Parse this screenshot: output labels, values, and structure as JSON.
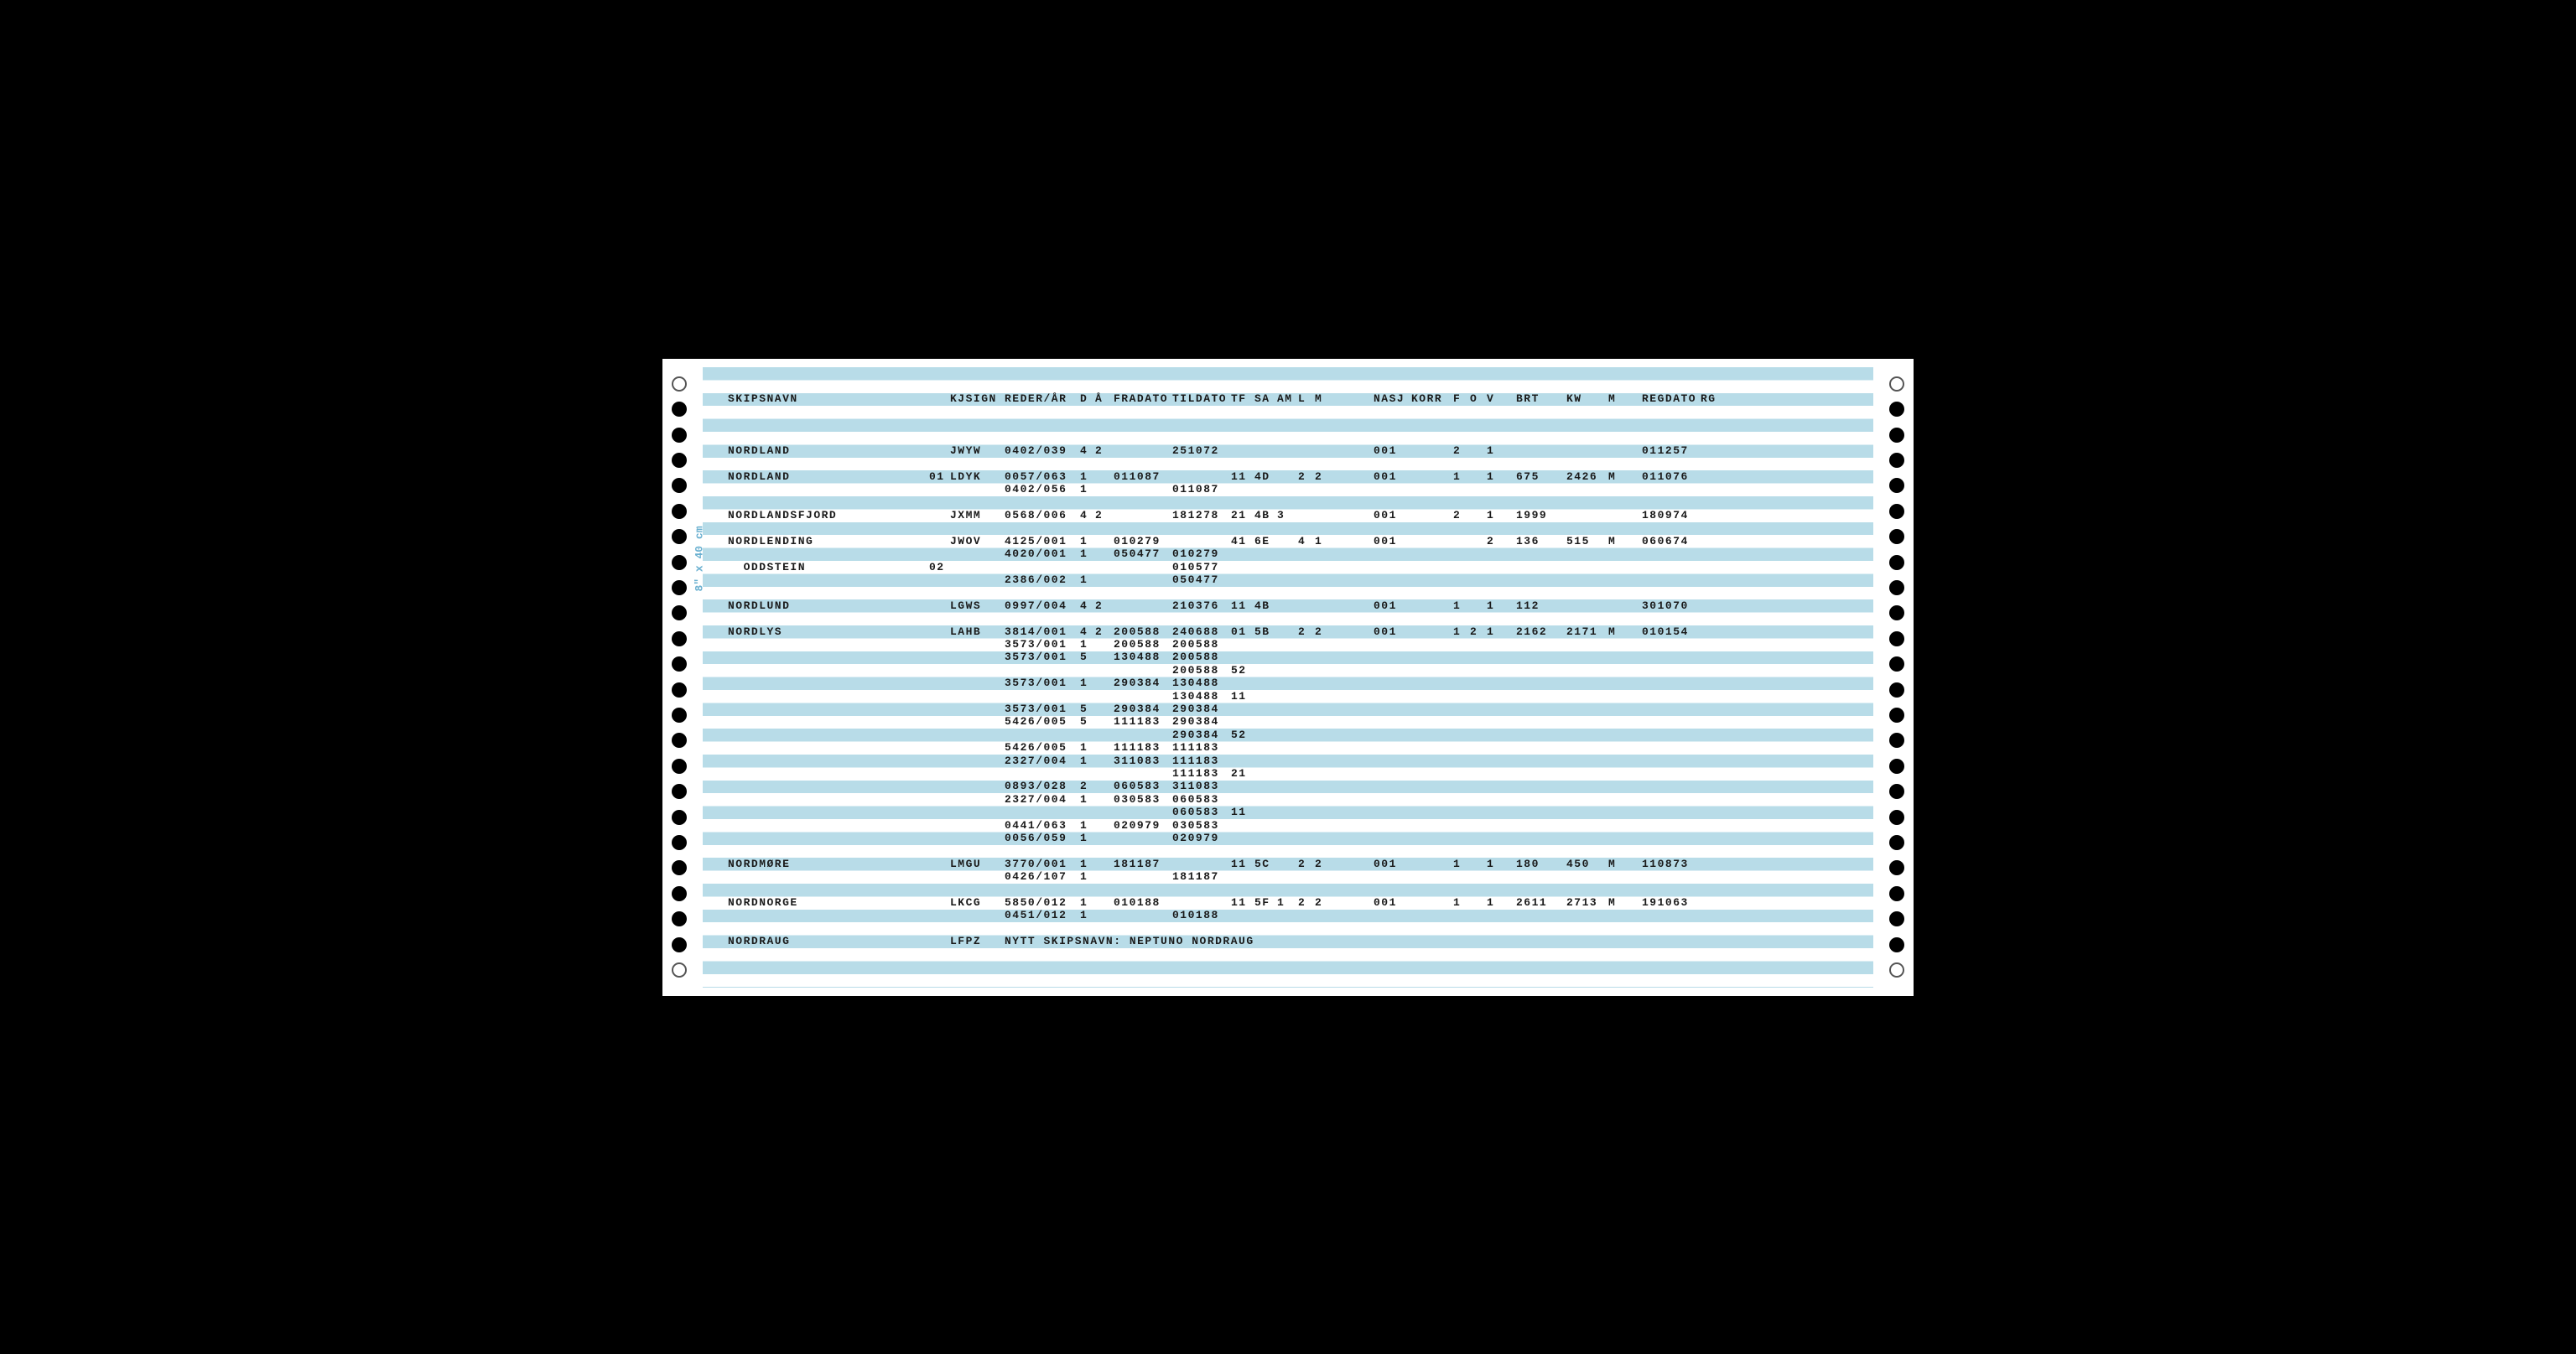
{
  "headers": {
    "skipsnavn": "SKIPSNAVN",
    "kjsign": "KJSIGN",
    "reder": "REDER/ÅR",
    "d": "D",
    "a": "Å",
    "fradato": "FRADATO",
    "tildato": "TILDATO",
    "tf": "TF",
    "sa": "SA",
    "am": "AM",
    "l": "L",
    "m": "M",
    "nasj": "NASJ",
    "korr": "KORR",
    "f": "F",
    "o": "O",
    "v": "V",
    "brt": "BRT",
    "kw": "KW",
    "m2": "M",
    "regdato": "REGDATO",
    "rg": "RG"
  },
  "side_label_large": "8\" x 40 cm",
  "rows": [
    {
      "line": 2,
      "skipsnavn": "SKIPSNAVN",
      "is_header": true
    },
    {
      "line": 6,
      "skipsnavn": "NORDLAND",
      "kjsign": "JWYW",
      "reder": "0402/039",
      "d": "4",
      "a": "2",
      "tildato": "251072",
      "nasj": "001",
      "f": "2",
      "v": "1",
      "regdato": "011257"
    },
    {
      "line": 8,
      "skipsnavn": "NORDLAND",
      "pre": "01",
      "kjsign": "LDYK",
      "reder": "0057/063",
      "d": "1",
      "fradato": "011087",
      "tf": "11",
      "sa": "4D",
      "l": "2",
      "m": "2",
      "nasj": "001",
      "f": "1",
      "v": "1",
      "brt": "675",
      "kw": "2426",
      "m2": "M",
      "regdato": "011076"
    },
    {
      "line": 9,
      "reder": "0402/056",
      "d": "1",
      "tildato": "011087"
    },
    {
      "line": 11,
      "skipsnavn": "NORDLANDSFJORD",
      "kjsign": "JXMM",
      "reder": "0568/006",
      "d": "4",
      "a": "2",
      "tildato": "181278",
      "tf": "21",
      "sa": "4B",
      "am": "3",
      "nasj": "001",
      "f": "2",
      "v": "1",
      "brt": "1999",
      "regdato": "180974"
    },
    {
      "line": 13,
      "skipsnavn": "NORDLENDING",
      "kjsign": "JWOV",
      "reder": "4125/001",
      "d": "1",
      "fradato": "010279",
      "tf": "41",
      "sa": "6E",
      "l": "4",
      "m": "1",
      "nasj": "001",
      "f": "",
      "v": "2",
      "brt": "136",
      "kw": "515",
      "m2": "M",
      "regdato": "060674"
    },
    {
      "line": 14,
      "reder": "4020/001",
      "d": "1",
      "fradato": "050477",
      "tildato": "010279"
    },
    {
      "line": 15,
      "skipsnavn": "  ODDSTEIN",
      "pre": "02",
      "tildato": "010577"
    },
    {
      "line": 16,
      "reder": "2386/002",
      "d": "1",
      "tildato": "050477"
    },
    {
      "line": 18,
      "skipsnavn": "NORDLUND",
      "kjsign": "LGWS",
      "reder": "0997/004",
      "d": "4",
      "a": "2",
      "tildato": "210376",
      "tf": "11",
      "sa": "4B",
      "nasj": "001",
      "f": "1",
      "v": "1",
      "brt": "112",
      "regdato": "301070"
    },
    {
      "line": 20,
      "skipsnavn": "NORDLYS",
      "kjsign": "LAHB",
      "reder": "3814/001",
      "d": "4",
      "a": "2",
      "fradato": "200588",
      "tildato": "240688",
      "tf": "01",
      "sa": "5B",
      "l": "2",
      "m": "2",
      "nasj": "001",
      "f": "1",
      "o": "2",
      "v": "1",
      "brt": "2162",
      "kw": "2171",
      "m2": "M",
      "regdato": "010154"
    },
    {
      "line": 21,
      "reder": "3573/001",
      "d": "1",
      "fradato": "200588",
      "tildato": "200588"
    },
    {
      "line": 22,
      "reder": "3573/001",
      "d": "5",
      "fradato": "130488",
      "tildato": "200588"
    },
    {
      "line": 23,
      "tildato": "200588",
      "tf": "52"
    },
    {
      "line": 24,
      "reder": "3573/001",
      "d": "1",
      "fradato": "290384",
      "tildato": "130488"
    },
    {
      "line": 25,
      "tildato": "130488",
      "tf": "11"
    },
    {
      "line": 26,
      "reder": "3573/001",
      "d": "5",
      "fradato": "290384",
      "tildato": "290384"
    },
    {
      "line": 27,
      "reder": "5426/005",
      "d": "5",
      "fradato": "111183",
      "tildato": "290384"
    },
    {
      "line": 28,
      "tildato": "290384",
      "tf": "52"
    },
    {
      "line": 29,
      "reder": "5426/005",
      "d": "1",
      "fradato": "111183",
      "tildato": "111183"
    },
    {
      "line": 30,
      "reder": "2327/004",
      "d": "1",
      "fradato": "311083",
      "tildato": "111183"
    },
    {
      "line": 31,
      "tildato": "111183",
      "tf": "21"
    },
    {
      "line": 32,
      "reder": "0893/028",
      "d": "2",
      "fradato": "060583",
      "tildato": "311083"
    },
    {
      "line": 33,
      "reder": "2327/004",
      "d": "1",
      "fradato": "030583",
      "tildato": "060583"
    },
    {
      "line": 34,
      "tildato": "060583",
      "tf": "11"
    },
    {
      "line": 35,
      "reder": "0441/063",
      "d": "1",
      "fradato": "020979",
      "tildato": "030583"
    },
    {
      "line": 36,
      "reder": "0056/059",
      "d": "1",
      "tildato": "020979"
    },
    {
      "line": 38,
      "skipsnavn": "NORDMØRE",
      "kjsign": "LMGU",
      "reder": "3770/001",
      "d": "1",
      "fradato": "181187",
      "tf": "11",
      "sa": "5C",
      "l": "2",
      "m": "2",
      "nasj": "001",
      "f": "1",
      "v": "1",
      "brt": "180",
      "kw": "450",
      "m2": "M",
      "regdato": "110873"
    },
    {
      "line": 39,
      "reder": "0426/107",
      "d": "1",
      "tildato": "181187"
    },
    {
      "line": 41,
      "skipsnavn": "NORDNORGE",
      "kjsign": "LKCG",
      "reder": "5850/012",
      "d": "1",
      "fradato": "010188",
      "tf": "11",
      "sa": "5F",
      "am": "1",
      "l": "2",
      "m": "2",
      "nasj": "001",
      "f": "1",
      "v": "1",
      "brt": "2611",
      "kw": "2713",
      "m2": "M",
      "regdato": "191063"
    },
    {
      "line": 42,
      "reder": "0451/012",
      "d": "1",
      "tildato": "010188"
    },
    {
      "line": 44,
      "skipsnavn": "NORDRAUG",
      "kjsign": "LFPZ",
      "note": "NYTT SKIPSNAVN: NEPTUNO NORDRAUG"
    }
  ],
  "columns": {
    "skipsnavn": 0,
    "pre": 240,
    "kjsign": 265,
    "reder": 330,
    "d": 420,
    "a": 438,
    "fradato": 460,
    "tildato": 530,
    "tf": 600,
    "sa": 628,
    "am": 655,
    "l": 680,
    "m": 700,
    "nasj": 770,
    "korr": 815,
    "f": 865,
    "o": 885,
    "v": 905,
    "brt": 940,
    "kw": 1000,
    "m2": 1050,
    "regdato": 1090,
    "rg": 1160
  },
  "colors": {
    "stripe": "#b8dce8",
    "text": "#1a1a1a",
    "guide": "#6ab0d0"
  }
}
